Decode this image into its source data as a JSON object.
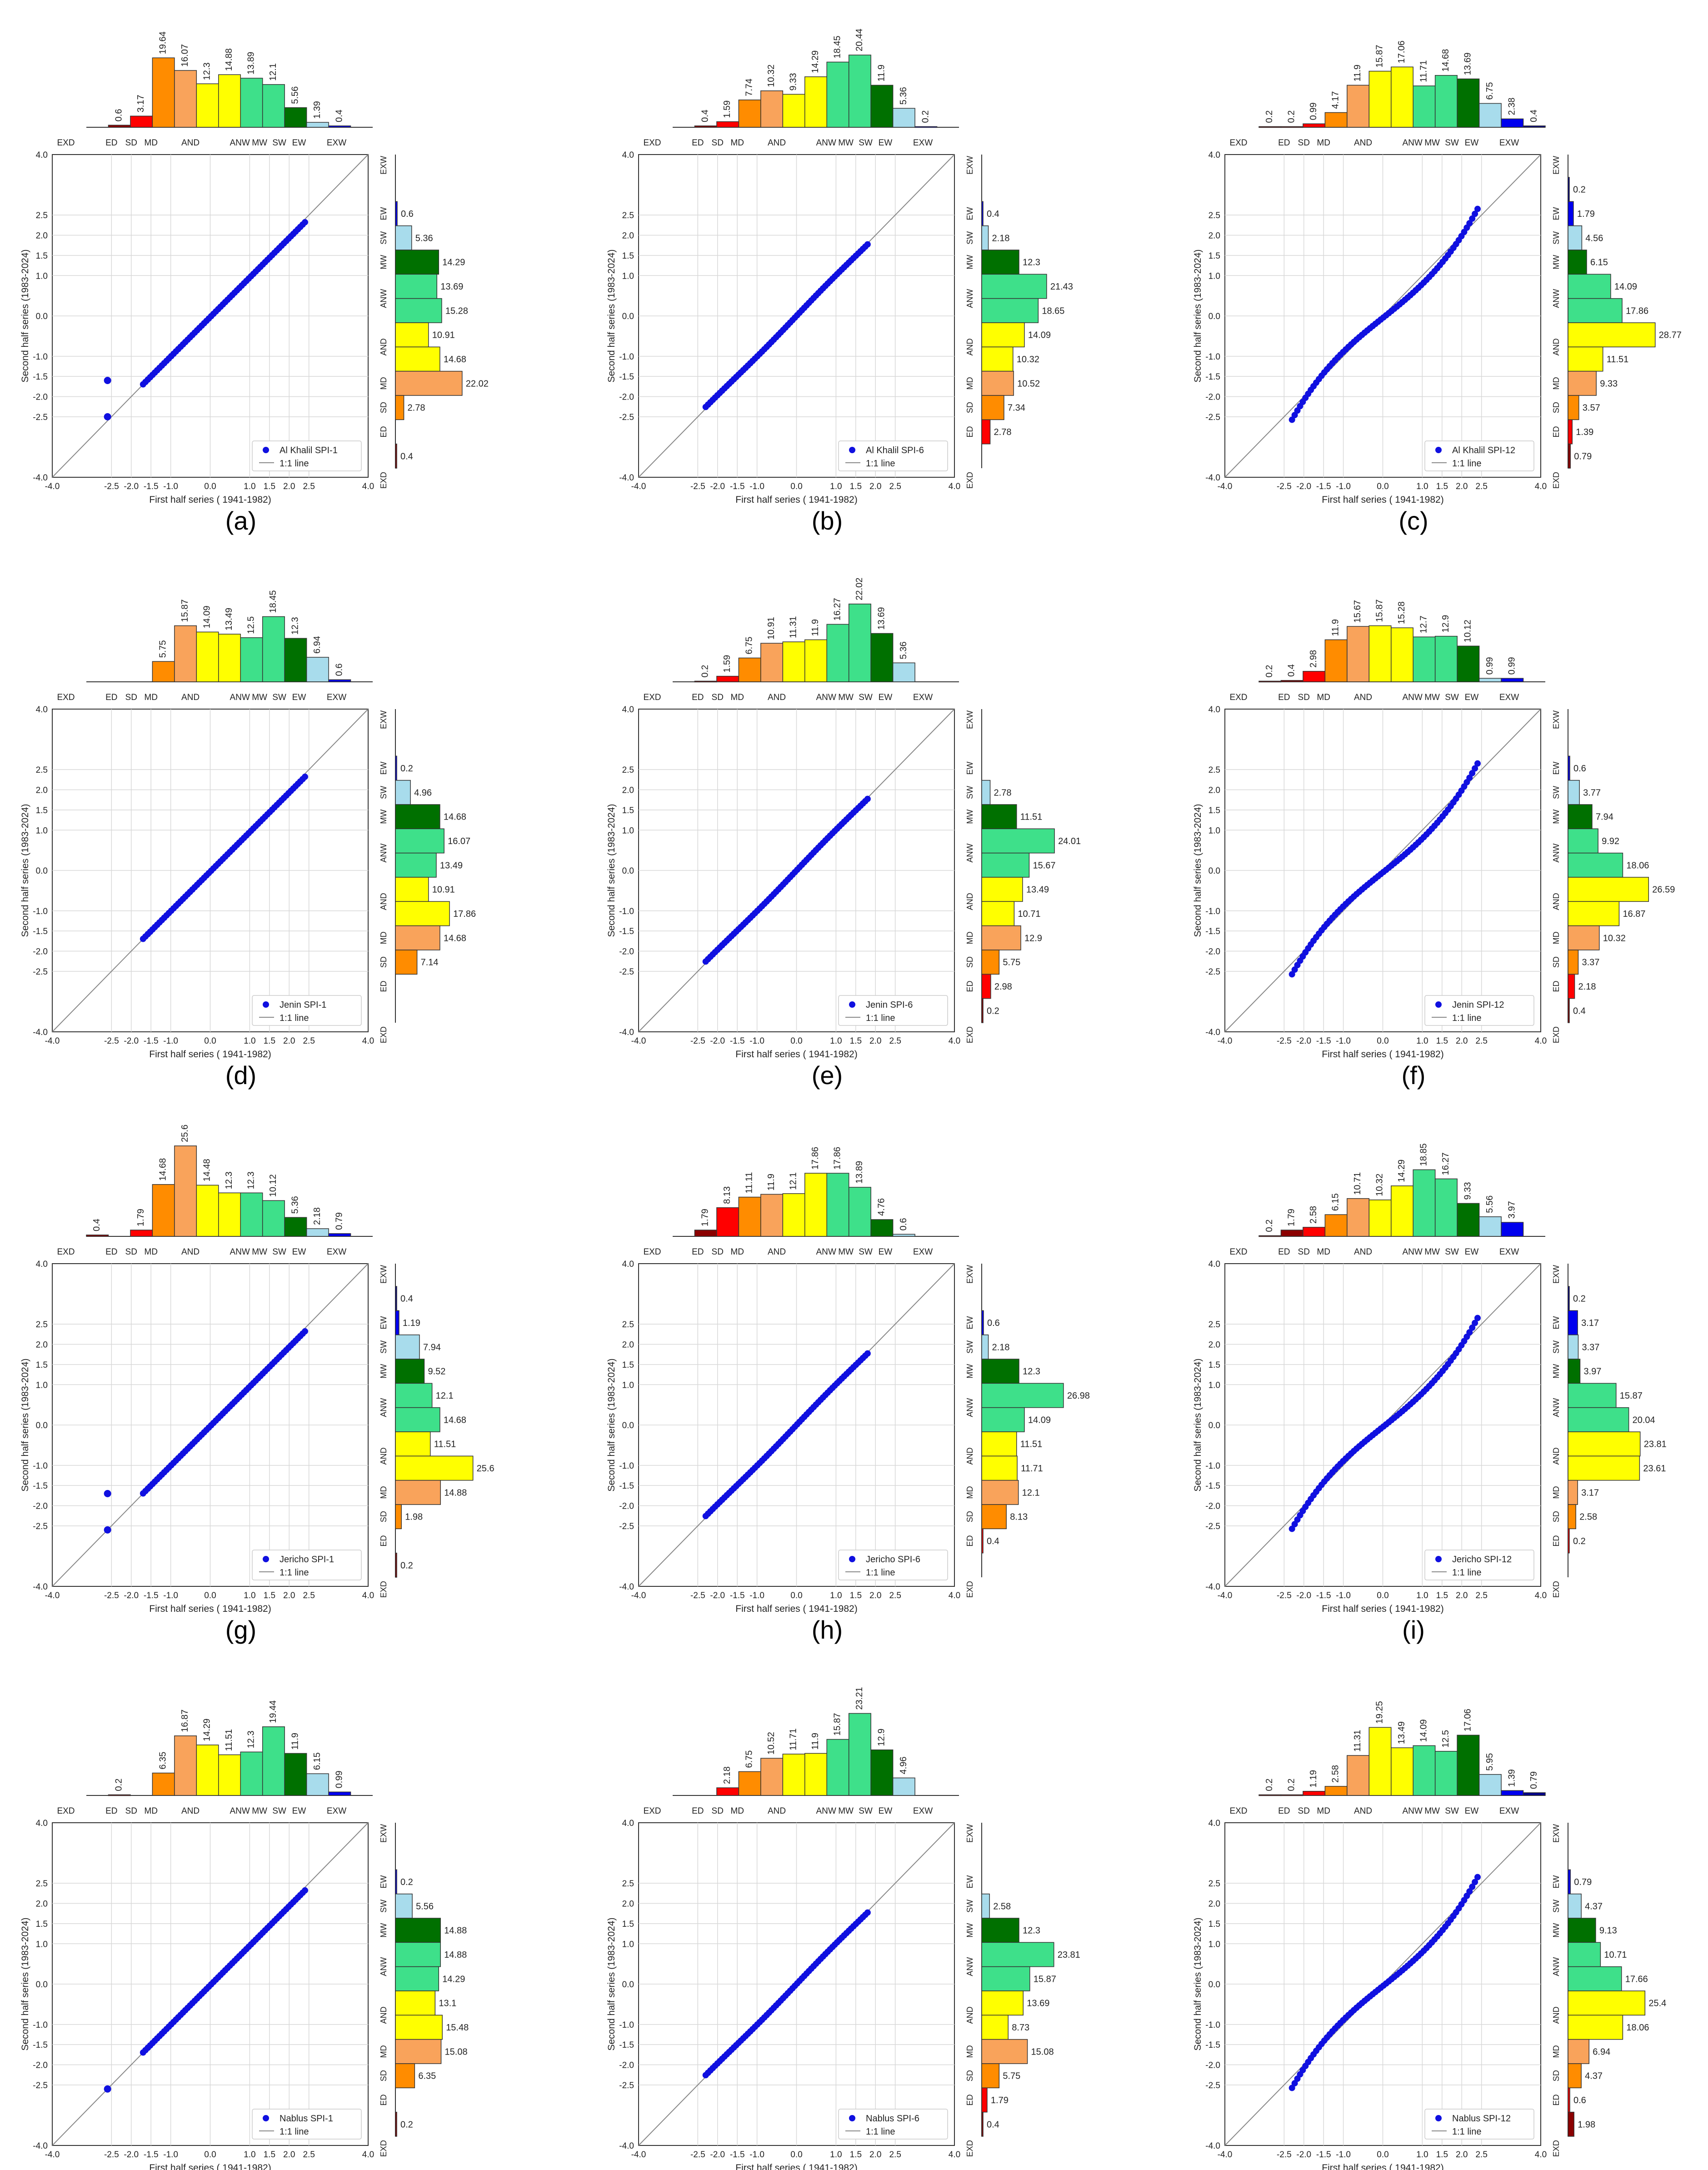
{
  "figure": {
    "x_axis_label": "First half series ( 1941-1982)",
    "y_axis_label": "Second half series (1983-2024)",
    "legend_line_label": "1:1 line",
    "category_labels": [
      "EXD",
      "ED",
      "SD",
      "MD",
      "AND",
      "ANW",
      "MW",
      "SW",
      "EW",
      "EXW"
    ],
    "tick_labels": [
      "-4.0",
      "-2.5",
      "-2.0",
      "-1.5",
      "-1.0",
      "0.0",
      "1.0",
      "1.5",
      "2.0",
      "2.5",
      "4.0"
    ],
    "y_tick_labels": [
      "4.0",
      "2.5",
      "2.0",
      "1.5",
      "1.0",
      "0.0",
      "-1.0",
      "-1.5",
      "-2.0",
      "-2.5",
      "-4.0"
    ]
  },
  "colors": {
    "EXD": "#8b0000",
    "ED": "#ff0000",
    "SD": "#ff8c00",
    "MD": "#f9a35b",
    "AND": "#ffff00",
    "ANW": "#3ee08a",
    "MW": "#007000",
    "SW": "#a8dcec",
    "EW": "#0000ee",
    "EXW": "#00008b",
    "points": "#1010e0",
    "line": "#888888"
  },
  "chart_data": [
    {
      "id": "a",
      "label": "(a)",
      "type": "scatter",
      "legend": "Al Khalil SPI-1",
      "curve": "spi1",
      "outliers": [
        [
          -2.6,
          -1.6
        ],
        [
          -2.6,
          -2.5
        ]
      ],
      "top": [
        0,
        0.6,
        3.17,
        19.64,
        16.07,
        12.3,
        14.88,
        13.89,
        12.1,
        5.56,
        1.39,
        0.4,
        0
      ],
      "right": [
        0,
        0.6,
        5.36,
        14.29,
        13.69,
        15.28,
        10.91,
        14.68,
        22.02,
        2.78,
        0,
        0.4
      ]
    },
    {
      "id": "b",
      "label": "(b)",
      "type": "scatter",
      "legend": "Al Khalil SPI-6",
      "curve": "spi6",
      "outliers": [],
      "top": [
        0,
        0.4,
        1.59,
        7.74,
        10.32,
        9.33,
        14.29,
        18.45,
        20.44,
        11.9,
        5.36,
        0.2,
        0
      ],
      "right": [
        0,
        0.4,
        2.18,
        12.3,
        21.43,
        18.65,
        14.09,
        10.32,
        10.52,
        7.34,
        2.78,
        0
      ]
    },
    {
      "id": "c",
      "label": "(c)",
      "type": "scatter",
      "legend": "Al Khalil SPI-12",
      "curve": "spi12",
      "outliers": [],
      "top": [
        0.2,
        0.2,
        0.99,
        4.17,
        11.9,
        15.87,
        17.06,
        11.71,
        14.68,
        13.69,
        6.75,
        2.38,
        0.4
      ],
      "right": [
        0.2,
        1.79,
        4.56,
        6.15,
        14.09,
        17.86,
        28.77,
        11.51,
        9.33,
        3.57,
        1.39,
        0.79
      ]
    },
    {
      "id": "d",
      "label": "(d)",
      "type": "scatter",
      "legend": "Jenin SPI-1",
      "curve": "spi1",
      "outliers": [],
      "top": [
        0,
        0,
        0,
        5.75,
        15.87,
        14.09,
        13.49,
        12.5,
        18.45,
        12.3,
        6.94,
        0.6,
        0
      ],
      "right": [
        0,
        0.2,
        4.96,
        14.68,
        16.07,
        13.49,
        10.91,
        17.86,
        14.68,
        7.14,
        0,
        0
      ]
    },
    {
      "id": "e",
      "label": "(e)",
      "type": "scatter",
      "legend": "Jenin SPI-6",
      "curve": "spi6",
      "outliers": [],
      "top": [
        0,
        0.2,
        1.59,
        6.75,
        10.91,
        11.31,
        11.9,
        16.27,
        22.02,
        13.69,
        5.36,
        0,
        0
      ],
      "right": [
        0,
        0,
        2.78,
        11.51,
        24.01,
        15.67,
        13.49,
        10.71,
        12.9,
        5.75,
        2.98,
        0.2
      ]
    },
    {
      "id": "f",
      "label": "(f)",
      "type": "scatter",
      "legend": "Jenin SPI-12",
      "curve": "spi12",
      "outliers": [],
      "top": [
        0.2,
        0.4,
        2.98,
        11.9,
        15.67,
        15.87,
        15.28,
        12.7,
        12.9,
        10.12,
        0.99,
        0.99,
        0
      ],
      "right": [
        0,
        0.6,
        3.77,
        7.94,
        9.92,
        18.06,
        26.59,
        16.87,
        10.32,
        3.37,
        2.18,
        0.4
      ]
    },
    {
      "id": "g",
      "label": "(g)",
      "type": "scatter",
      "legend": "Jericho SPI-1",
      "curve": "spi1",
      "outliers": [
        [
          -2.6,
          -1.7
        ],
        [
          -2.6,
          -2.6
        ]
      ],
      "top": [
        0.4,
        0,
        1.79,
        14.68,
        25.6,
        14.48,
        12.3,
        12.3,
        10.12,
        5.36,
        2.18,
        0.79,
        0
      ],
      "right": [
        0.4,
        1.19,
        7.94,
        9.52,
        12.1,
        14.68,
        11.51,
        25.6,
        14.88,
        1.98,
        0,
        0.2
      ]
    },
    {
      "id": "h",
      "label": "(h)",
      "type": "scatter",
      "legend": "Jericho SPI-6",
      "curve": "spi6",
      "outliers": [],
      "top": [
        0,
        1.79,
        8.13,
        11.11,
        11.9,
        12.1,
        17.86,
        17.86,
        13.89,
        4.76,
        0.6,
        0,
        0
      ],
      "right": [
        0,
        0.6,
        2.18,
        12.3,
        26.98,
        14.09,
        11.51,
        11.71,
        12.1,
        8.13,
        0.4,
        0
      ]
    },
    {
      "id": "i",
      "label": "(i)",
      "type": "scatter",
      "legend": "Jericho SPI-12",
      "curve": "spi12",
      "outliers": [],
      "top": [
        0.2,
        1.79,
        2.58,
        6.15,
        10.71,
        10.32,
        14.29,
        18.85,
        16.27,
        9.33,
        5.56,
        3.97,
        0
      ],
      "right": [
        0.2,
        3.17,
        3.37,
        3.97,
        15.87,
        20.04,
        23.81,
        23.61,
        3.17,
        2.58,
        0.2,
        0
      ]
    },
    {
      "id": "j",
      "label": "(j)",
      "type": "scatter",
      "legend": "Nablus SPI-1",
      "curve": "spi1",
      "outliers": [
        [
          -2.6,
          -2.6
        ]
      ],
      "top": [
        0,
        0.2,
        0,
        6.35,
        16.87,
        14.29,
        11.51,
        12.3,
        19.44,
        11.9,
        6.15,
        0.99,
        0
      ],
      "right": [
        0,
        0.2,
        5.56,
        14.88,
        14.88,
        14.29,
        13.1,
        15.48,
        15.08,
        6.35,
        0,
        0.2
      ]
    },
    {
      "id": "k",
      "label": "(k)",
      "type": "scatter",
      "legend": "Nablus SPI-6",
      "curve": "spi6",
      "outliers": [],
      "top": [
        0,
        0,
        2.18,
        6.75,
        10.52,
        11.71,
        11.9,
        15.87,
        23.21,
        12.9,
        4.96,
        0,
        0
      ],
      "right": [
        0,
        0,
        2.58,
        12.3,
        23.81,
        15.87,
        13.69,
        8.73,
        15.08,
        5.75,
        1.79,
        0.4
      ]
    },
    {
      "id": "l",
      "label": "(l)",
      "type": "scatter",
      "legend": "Nablus SPI-12",
      "curve": "spi12",
      "outliers": [],
      "top": [
        0.2,
        0.2,
        1.19,
        2.58,
        11.31,
        19.25,
        13.49,
        14.09,
        12.5,
        17.06,
        5.95,
        1.39,
        0.79
      ],
      "right": [
        0,
        0.79,
        4.37,
        9.13,
        10.71,
        17.66,
        25.4,
        18.06,
        6.94,
        4.37,
        0.6,
        1.98
      ]
    }
  ]
}
